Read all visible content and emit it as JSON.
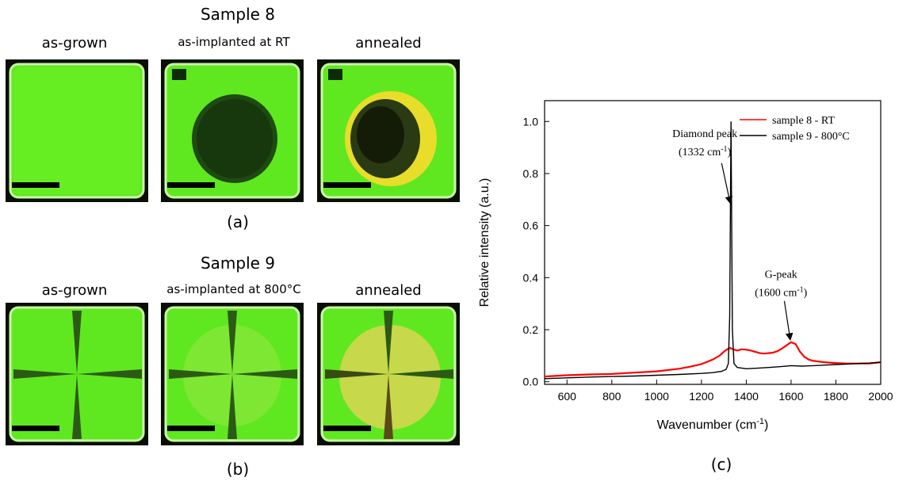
{
  "panel_a": {
    "title": "Sample 8",
    "caption": "(a)",
    "tiles": [
      {
        "label": "as-grown",
        "state": "clear"
      },
      {
        "label": "as-implanted at RT",
        "state": "dark-spot"
      },
      {
        "label": "annealed",
        "state": "dark-yellow-spot"
      }
    ]
  },
  "panel_b": {
    "title": "Sample 9",
    "caption": "(b)",
    "tiles": [
      {
        "label": "as-grown",
        "state": "cross"
      },
      {
        "label": "as-implanted at 800°C",
        "state": "cross-faint-spot"
      },
      {
        "label": "annealed",
        "state": "cross-orange-spot"
      }
    ]
  },
  "panel_c": {
    "caption": "(c)"
  },
  "colors": {
    "fluorescence_green": "#5fe820",
    "sample8": "#ff0000",
    "sample9": "#000000"
  },
  "chart_data": {
    "type": "line",
    "xlabel": "Wavenumber (cm",
    "xlabel_sup": "-1",
    "xlabel_end": ")",
    "ylabel": "Relative intensity (a.u.)",
    "xlim": [
      500,
      2000
    ],
    "ylim": [
      -0.01,
      1.08
    ],
    "xticks": [
      600,
      800,
      1000,
      1200,
      1400,
      1600,
      1800,
      2000
    ],
    "yticks": [
      0.0,
      0.2,
      0.4,
      0.6,
      0.8,
      1.0
    ],
    "ytick_labels": [
      "0.0",
      "0.2",
      "0.4",
      "0.6",
      "0.8",
      "1.0"
    ],
    "legend_position": "top-right",
    "series": [
      {
        "name": "sample 8 - RT",
        "color": "#ff0000",
        "x": [
          500,
          600,
          700,
          800,
          900,
          1000,
          1100,
          1150,
          1200,
          1250,
          1280,
          1300,
          1315,
          1328,
          1340,
          1360,
          1380,
          1400,
          1420,
          1440,
          1460,
          1480,
          1500,
          1520,
          1540,
          1560,
          1580,
          1600,
          1620,
          1640,
          1660,
          1680,
          1700,
          1750,
          1800,
          1850,
          1900,
          1950,
          2000
        ],
        "y": [
          0.02,
          0.025,
          0.028,
          0.03,
          0.035,
          0.04,
          0.05,
          0.058,
          0.068,
          0.085,
          0.1,
          0.115,
          0.125,
          0.13,
          0.125,
          0.12,
          0.125,
          0.123,
          0.12,
          0.115,
          0.11,
          0.108,
          0.11,
          0.112,
          0.118,
          0.128,
          0.14,
          0.152,
          0.145,
          0.115,
          0.095,
          0.085,
          0.08,
          0.075,
          0.072,
          0.07,
          0.07,
          0.07,
          0.075
        ]
      },
      {
        "name": "sample 9 - 800°C",
        "color": "#000000",
        "x": [
          500,
          600,
          700,
          800,
          900,
          1000,
          1100,
          1200,
          1250,
          1290,
          1310,
          1320,
          1326,
          1330,
          1332,
          1334,
          1338,
          1345,
          1360,
          1400,
          1450,
          1500,
          1550,
          1600,
          1650,
          1700,
          1750,
          1800,
          1850,
          1900,
          1950,
          2000
        ],
        "y": [
          0.012,
          0.015,
          0.018,
          0.02,
          0.022,
          0.025,
          0.028,
          0.032,
          0.035,
          0.04,
          0.048,
          0.07,
          0.25,
          0.75,
          1.0,
          0.75,
          0.2,
          0.07,
          0.055,
          0.05,
          0.052,
          0.055,
          0.058,
          0.062,
          0.06,
          0.062,
          0.064,
          0.066,
          0.068,
          0.07,
          0.072,
          0.075
        ]
      }
    ],
    "annotations": [
      {
        "text": "Diamond peak",
        "sub": "(1332 cm",
        "sup": "-1",
        "end": ")",
        "arrow_to": [
          1332,
          0.68
        ]
      },
      {
        "text": "G-peak",
        "sub": "(1600 cm",
        "sup": "-1",
        "end": ")",
        "arrow_to": [
          1600,
          0.155
        ]
      }
    ]
  }
}
